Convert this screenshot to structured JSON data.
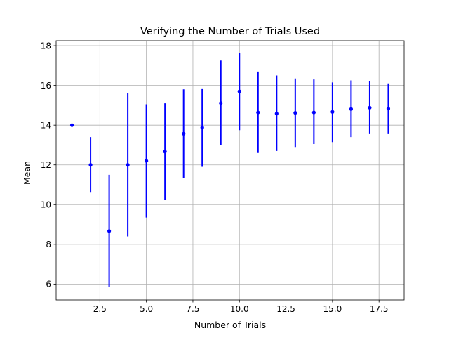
{
  "chart_data": {
    "type": "scatter",
    "title": "Verifying the Number of Trials Used",
    "xlabel": "Number of Trials",
    "ylabel": "Mean",
    "xlim": [
      0.15,
      18.85
    ],
    "ylim": [
      5.2,
      18.25
    ],
    "x_ticks": [
      2.5,
      5.0,
      7.5,
      10.0,
      12.5,
      15.0,
      17.5
    ],
    "x_tick_labels": [
      "2.5",
      "5.0",
      "7.5",
      "10.0",
      "12.5",
      "15.0",
      "17.5"
    ],
    "y_ticks": [
      6,
      8,
      10,
      12,
      14,
      16,
      18
    ],
    "y_tick_labels": [
      "6",
      "8",
      "10",
      "12",
      "14",
      "16",
      "18"
    ],
    "grid": true,
    "color": "#0000ff",
    "points": [
      {
        "x": 1,
        "y": 14.0,
        "lo": 14.0,
        "hi": 14.0
      },
      {
        "x": 2,
        "y": 12.0,
        "lo": 10.6,
        "hi": 13.4
      },
      {
        "x": 3,
        "y": 8.67,
        "lo": 5.85,
        "hi": 11.5
      },
      {
        "x": 4,
        "y": 12.0,
        "lo": 8.4,
        "hi": 15.6
      },
      {
        "x": 5,
        "y": 12.2,
        "lo": 9.35,
        "hi": 15.05
      },
      {
        "x": 6,
        "y": 12.67,
        "lo": 10.25,
        "hi": 15.1
      },
      {
        "x": 7,
        "y": 13.57,
        "lo": 11.35,
        "hi": 15.8
      },
      {
        "x": 8,
        "y": 13.88,
        "lo": 11.9,
        "hi": 15.85
      },
      {
        "x": 9,
        "y": 15.11,
        "lo": 13.0,
        "hi": 17.25
      },
      {
        "x": 10,
        "y": 15.7,
        "lo": 13.75,
        "hi": 17.65
      },
      {
        "x": 11,
        "y": 14.64,
        "lo": 12.6,
        "hi": 16.7
      },
      {
        "x": 12,
        "y": 14.58,
        "lo": 12.7,
        "hi": 16.5
      },
      {
        "x": 13,
        "y": 14.62,
        "lo": 12.9,
        "hi": 16.35
      },
      {
        "x": 14,
        "y": 14.64,
        "lo": 13.05,
        "hi": 16.3
      },
      {
        "x": 15,
        "y": 14.67,
        "lo": 13.15,
        "hi": 16.15
      },
      {
        "x": 16,
        "y": 14.81,
        "lo": 13.4,
        "hi": 16.25
      },
      {
        "x": 17,
        "y": 14.88,
        "lo": 13.55,
        "hi": 16.2
      },
      {
        "x": 18,
        "y": 14.83,
        "lo": 13.55,
        "hi": 16.1
      }
    ]
  }
}
